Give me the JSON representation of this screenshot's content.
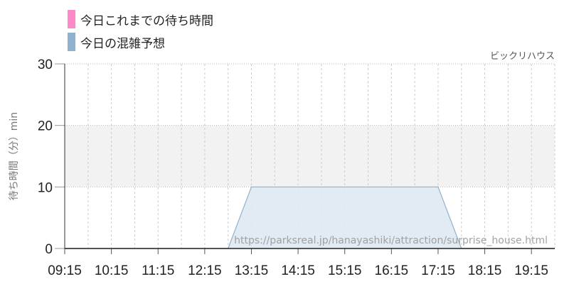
{
  "chart_data": {
    "type": "area",
    "attraction": "ビックリハウス",
    "ylabel": "待ち時間（分）min",
    "ylim": [
      0,
      30
    ],
    "yticks": [
      0,
      10,
      20,
      30
    ],
    "xticks": [
      "09:15",
      "10:15",
      "11:15",
      "12:15",
      "13:15",
      "14:15",
      "15:15",
      "16:15",
      "17:15",
      "18:15",
      "19:15"
    ],
    "xrange": [
      "09:15",
      "19:45"
    ],
    "highlight_band": [
      10,
      20
    ],
    "grid": true,
    "legend": [
      {
        "name": "今日これまでの待ち時間",
        "color": "#ff88c8"
      },
      {
        "name": "今日の混雑予想",
        "color": "#8fb1d0"
      }
    ],
    "series": [
      {
        "name": "今日これまでの待ち時間",
        "color": "#ff88c8",
        "points": []
      },
      {
        "name": "今日の混雑予想",
        "color": "#8fb1d0",
        "fill": "#dfe9f2",
        "points": [
          [
            "09:15",
            0
          ],
          [
            "09:45",
            0
          ],
          [
            "10:15",
            0
          ],
          [
            "10:45",
            0
          ],
          [
            "11:15",
            0
          ],
          [
            "11:45",
            0
          ],
          [
            "12:15",
            0
          ],
          [
            "12:45",
            0
          ],
          [
            "13:15",
            10
          ],
          [
            "13:45",
            10
          ],
          [
            "14:15",
            10
          ],
          [
            "14:45",
            10
          ],
          [
            "15:15",
            10
          ],
          [
            "15:45",
            10
          ],
          [
            "16:15",
            10
          ],
          [
            "16:45",
            10
          ],
          [
            "17:15",
            10
          ],
          [
            "17:45",
            0
          ],
          [
            "18:15",
            0
          ],
          [
            "18:45",
            0
          ],
          [
            "19:15",
            0
          ],
          [
            "19:45",
            0
          ]
        ]
      }
    ],
    "watermark": "https://parksreal.jp/hanayashiki/attraction/surprise_house.html"
  }
}
